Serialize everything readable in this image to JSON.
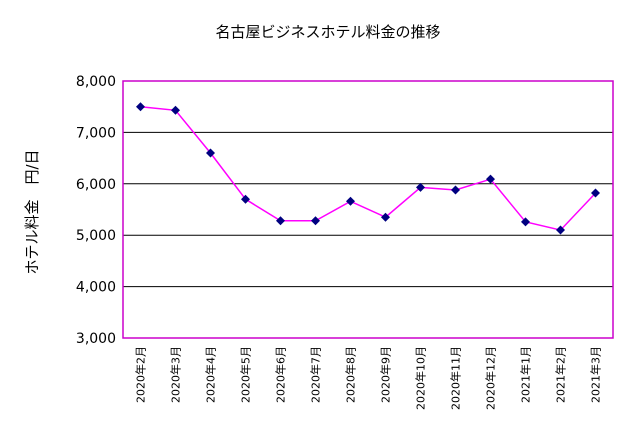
{
  "chart_data": {
    "type": "line",
    "title": "名古屋ビジネスホテル料金の推移",
    "ylabel": "ホテル料金　円/日",
    "xlabel": "",
    "categories": [
      "2020年2月",
      "2020年3月",
      "2020年4月",
      "2020年5月",
      "2020年6月",
      "2020年7月",
      "2020年8月",
      "2020年9月",
      "2020年10月",
      "2020年11月",
      "2020年12月",
      "2021年1月",
      "2021年2月",
      "2021年3月"
    ],
    "series": [
      {
        "values": [
          7500,
          7430,
          6600,
          5700,
          5280,
          5280,
          5660,
          5350,
          5930,
          5880,
          6090,
          5260,
          5100,
          5820
        ]
      }
    ],
    "ylim": [
      3000,
      8000
    ],
    "yticks": [
      3000,
      4000,
      5000,
      6000,
      7000,
      8000
    ],
    "ytick_labels": [
      "3,000",
      "4,000",
      "5,000",
      "6,000",
      "7,000",
      "8,000"
    ],
    "grid": true,
    "legend": "none",
    "colors": {
      "line": "#FF00FF",
      "marker": "#000080",
      "plot_border": "#CC00CC",
      "grid": "#000000"
    }
  }
}
